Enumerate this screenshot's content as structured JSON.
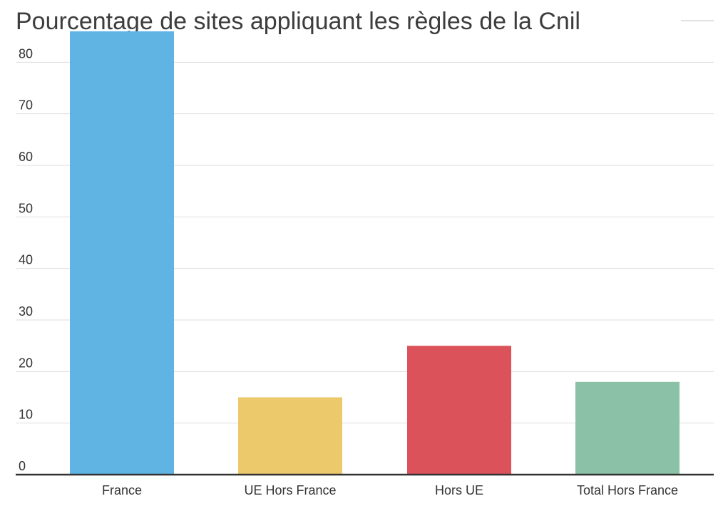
{
  "chart_data": {
    "type": "bar",
    "title": "Pourcentage de sites appliquant les règles de la Cnil",
    "categories": [
      "France",
      "UE Hors France",
      "Hors UE",
      "Total Hors France"
    ],
    "values": [
      86,
      15,
      25,
      18
    ],
    "colors": [
      "#5fb4e4",
      "#ecc96a",
      "#db525b",
      "#8bc1a6"
    ],
    "ylim": [
      0,
      90
    ],
    "yticks": [
      0,
      10,
      20,
      30,
      40,
      50,
      60,
      70,
      80
    ],
    "grid": true,
    "legend": "none",
    "xlabel": "",
    "ylabel": ""
  }
}
